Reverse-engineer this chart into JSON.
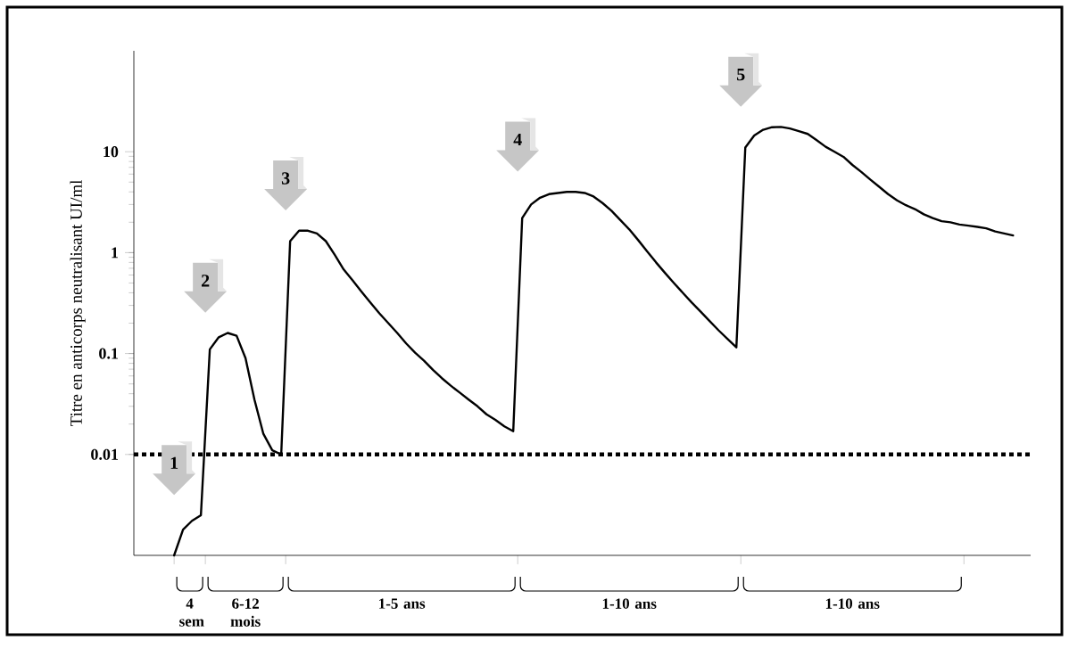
{
  "chart_data": {
    "type": "line",
    "ylabel": "Titre en anticorps neutralisant UI/ml",
    "log": "y",
    "categories": [
      null,
      null,
      null,
      null,
      null,
      null,
      null,
      null,
      null,
      null,
      null,
      null,
      null,
      null,
      null,
      null,
      null,
      null,
      null,
      null,
      null,
      null,
      null,
      null,
      null,
      null,
      null,
      null,
      null,
      null,
      null,
      null,
      null,
      null,
      null,
      null,
      null,
      null,
      null,
      null,
      null,
      null,
      null,
      null,
      null,
      null,
      null,
      null,
      null,
      null,
      null,
      null,
      null,
      null,
      null,
      null,
      null,
      null,
      null,
      null,
      null,
      null,
      null,
      null,
      null,
      null,
      null,
      null,
      null,
      null,
      null,
      null,
      null,
      null,
      null,
      null,
      null,
      null,
      null,
      null,
      null,
      null,
      null,
      null,
      null,
      null,
      null,
      null,
      null,
      null,
      null,
      null,
      null,
      null,
      null
    ],
    "values": [
      0.001,
      0.0018,
      0.0022,
      0.0025,
      0.11,
      0.145,
      0.16,
      0.15,
      0.09,
      0.035,
      0.016,
      0.011,
      0.01,
      1.3,
      1.65,
      1.65,
      1.55,
      1.3,
      0.95,
      0.68,
      0.53,
      0.41,
      0.32,
      0.25,
      0.2,
      0.16,
      0.126,
      0.102,
      0.085,
      0.069,
      0.057,
      0.048,
      0.041,
      0.035,
      0.03,
      0.025,
      0.022,
      0.019,
      0.017,
      2.2,
      3.0,
      3.5,
      3.8,
      3.9,
      4.0,
      4.0,
      3.9,
      3.6,
      3.1,
      2.6,
      2.1,
      1.7,
      1.33,
      1.03,
      0.8,
      0.63,
      0.5,
      0.4,
      0.32,
      0.26,
      0.21,
      0.17,
      0.14,
      0.115,
      11,
      14.5,
      16.5,
      17.5,
      17.6,
      17,
      16,
      15,
      13,
      11.2,
      10,
      8.9,
      7.4,
      6.3,
      5.3,
      4.5,
      3.8,
      3.3,
      2.95,
      2.7,
      2.4,
      2.2,
      2.05,
      2.0,
      1.9,
      1.85,
      1.8,
      1.74,
      1.62,
      1.55,
      1.48
    ],
    "color": "#000000",
    "ylim": [
      0.001,
      100
    ],
    "yticks": [
      0.01,
      0.1,
      1,
      10
    ],
    "ref_lines": [
      {
        "axis": "y",
        "value": 0.01,
        "line_style": "dotted"
      }
    ],
    "annotations": [
      "4 sem",
      "6-12 mois",
      "1-5 ans",
      "1-10 ans",
      "1-10 ans",
      "1",
      "2",
      "3",
      "4",
      "5"
    ]
  }
}
